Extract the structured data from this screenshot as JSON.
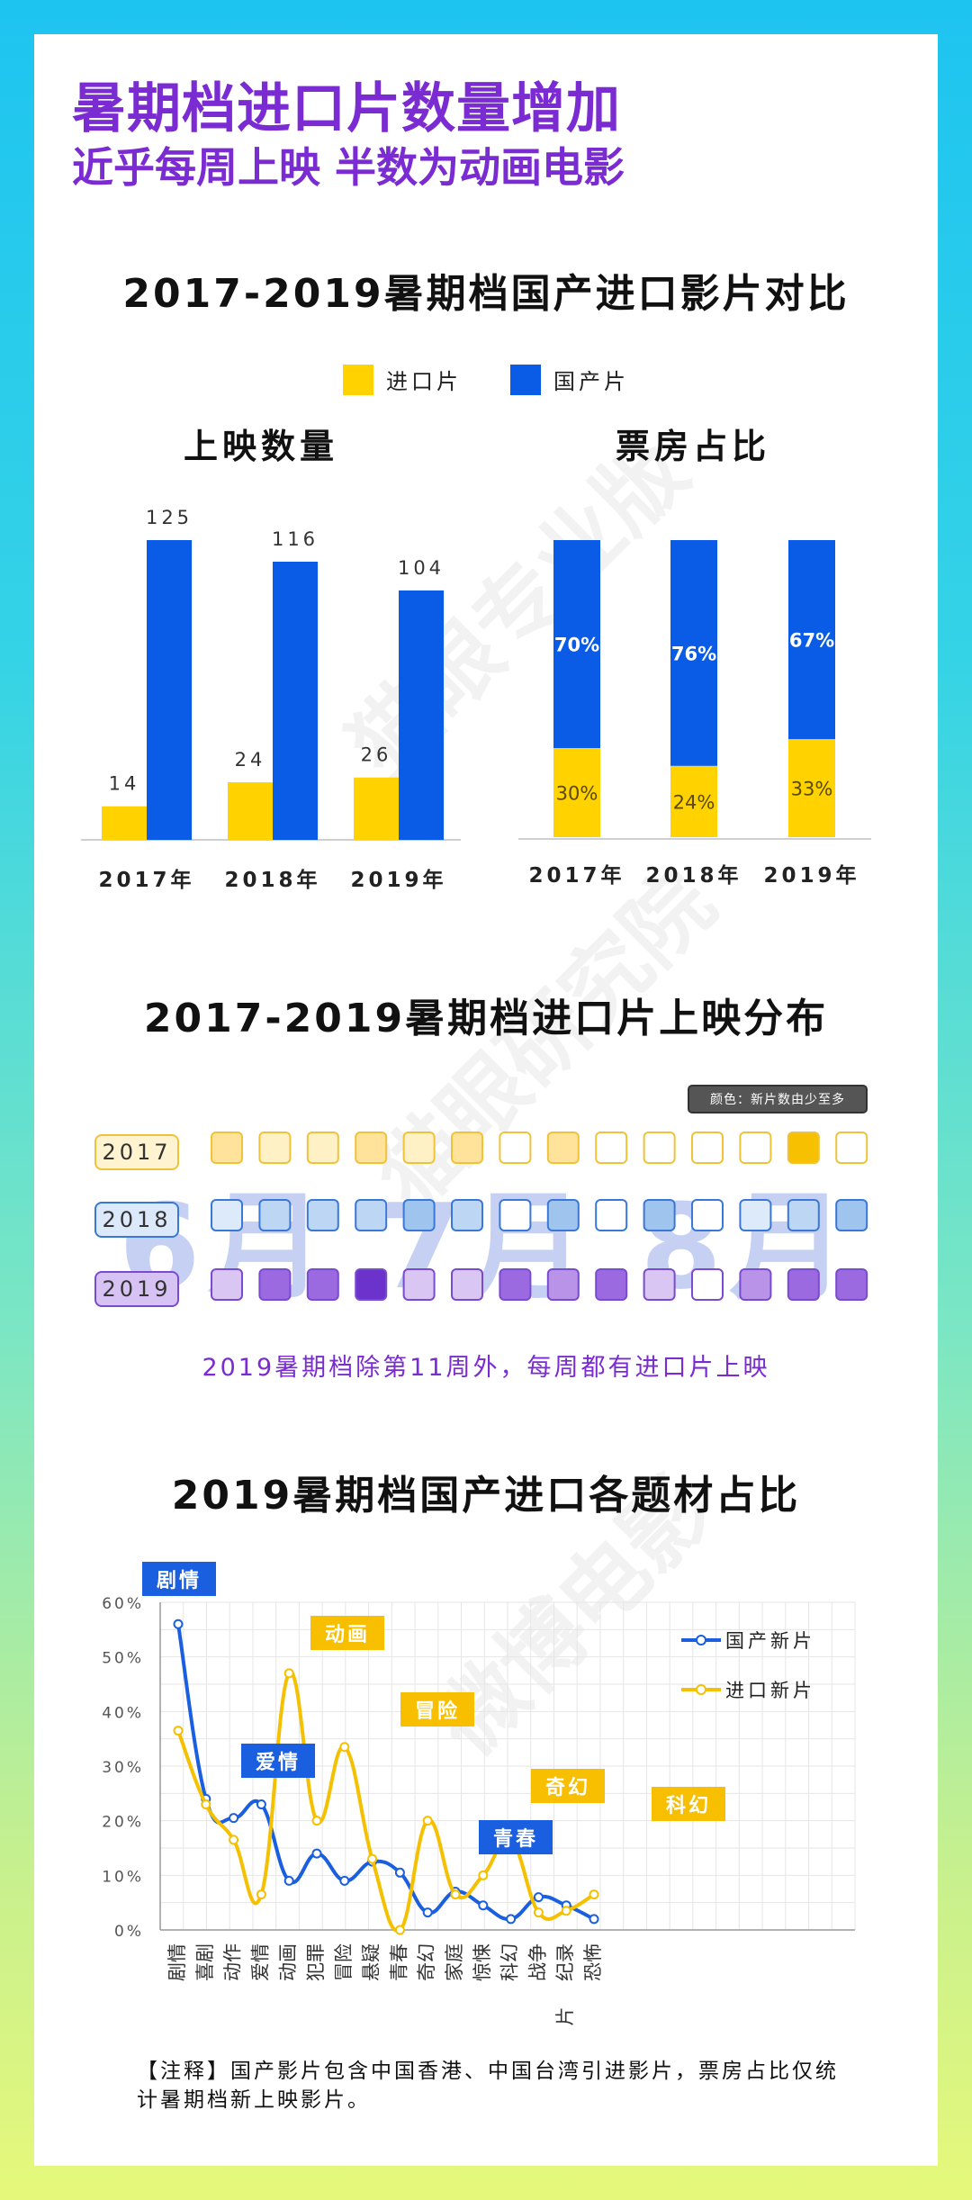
{
  "header": {
    "title": "暑期档进口片数量增加",
    "subtitle": "近乎每周上映 半数为动画电影"
  },
  "section1": {
    "title": "2017-2019暑期档国产进口影片对比",
    "legend": {
      "imported": "进口片",
      "domestic": "国产片"
    },
    "colors": {
      "imported": "#ffd200",
      "domestic": "#0a5ce6"
    }
  },
  "chart_data": [
    {
      "type": "bar",
      "title": "上映数量",
      "categories": [
        "2017年",
        "2018年",
        "2019年"
      ],
      "series": [
        {
          "name": "进口片",
          "values": [
            14,
            24,
            26
          ]
        },
        {
          "name": "国产片",
          "values": [
            125,
            116,
            104
          ]
        }
      ]
    },
    {
      "type": "bar",
      "stacked": true,
      "title": "票房占比",
      "categories": [
        "2017年",
        "2018年",
        "2019年"
      ],
      "series": [
        {
          "name": "进口片",
          "values": [
            30,
            24,
            33
          ],
          "labels": [
            "30%",
            "24%",
            "33%"
          ]
        },
        {
          "name": "国产片",
          "values": [
            70,
            76,
            67
          ],
          "labels": [
            "70%",
            "76%",
            "67%"
          ]
        }
      ]
    },
    {
      "type": "heatmap",
      "title": "2017-2019暑期档进口片上映分布",
      "rows": [
        "2017",
        "2018",
        "2019"
      ],
      "months_text": "6月 7月 8月",
      "note": "颜色：新片数由少至多",
      "row_colors": [
        {
          "fill_dark": "#f7c000",
          "border": "#f0c23a"
        },
        {
          "fill_dark": "#7cb2ec",
          "border": "#3a78d8"
        },
        {
          "fill_dark": "#6b33cc",
          "border": "#7a4ad0"
        }
      ],
      "levels": [
        [
          2,
          1,
          1,
          2,
          1,
          2,
          0,
          2,
          0,
          0,
          0,
          0,
          4,
          0
        ],
        [
          1,
          2,
          2,
          2,
          3,
          2,
          0,
          3,
          0,
          3,
          0,
          1,
          2,
          3
        ],
        [
          1,
          3,
          3,
          4,
          1,
          1,
          3,
          2,
          3,
          1,
          0,
          2,
          3,
          3
        ]
      ],
      "caption": "2019暑期档除第11周外，每周都有进口片上映"
    },
    {
      "type": "line",
      "title": "2019暑期档国产进口各题材占比",
      "categories": [
        "剧情",
        "喜剧",
        "动作",
        "爱情",
        "动画",
        "犯罪",
        "冒险",
        "悬疑",
        "青春",
        "奇幻",
        "家庭",
        "惊悚",
        "科幻",
        "战争",
        "纪录片",
        "恐怖"
      ],
      "y_ticks": [
        "0%",
        "10%",
        "20%",
        "30%",
        "40%",
        "50%",
        "60%"
      ],
      "ylim": [
        0,
        60
      ],
      "series": [
        {
          "name": "国产新片",
          "color": "#1a5fe0",
          "values": [
            56,
            24,
            20.5,
            23,
            9,
            14,
            9,
            12.5,
            10.5,
            3.2,
            7,
            4.5,
            2,
            6,
            4.5,
            2
          ]
        },
        {
          "name": "进口新片",
          "color": "#f5c000",
          "values": [
            36.5,
            23,
            16.5,
            6.5,
            47,
            20,
            33.5,
            13,
            0,
            20,
            6.5,
            10,
            16.5,
            3.2,
            3.5,
            6.5
          ]
        }
      ],
      "annotations": [
        {
          "text": "剧情",
          "style": "blue"
        },
        {
          "text": "动画",
          "style": "yellow"
        },
        {
          "text": "爱情",
          "style": "blue"
        },
        {
          "text": "冒险",
          "style": "yellow"
        },
        {
          "text": "奇幻",
          "style": "yellow"
        },
        {
          "text": "青春",
          "style": "blue"
        },
        {
          "text": "科幻",
          "style": "yellow"
        }
      ]
    }
  ],
  "footnote": "【注释】国产影片包含中国香港、中国台湾引进影片，票房占比仅统计暑期档新上映影片。",
  "watermarks": [
    "猫眼专业版",
    "猫眼研究院",
    "微博电影"
  ]
}
